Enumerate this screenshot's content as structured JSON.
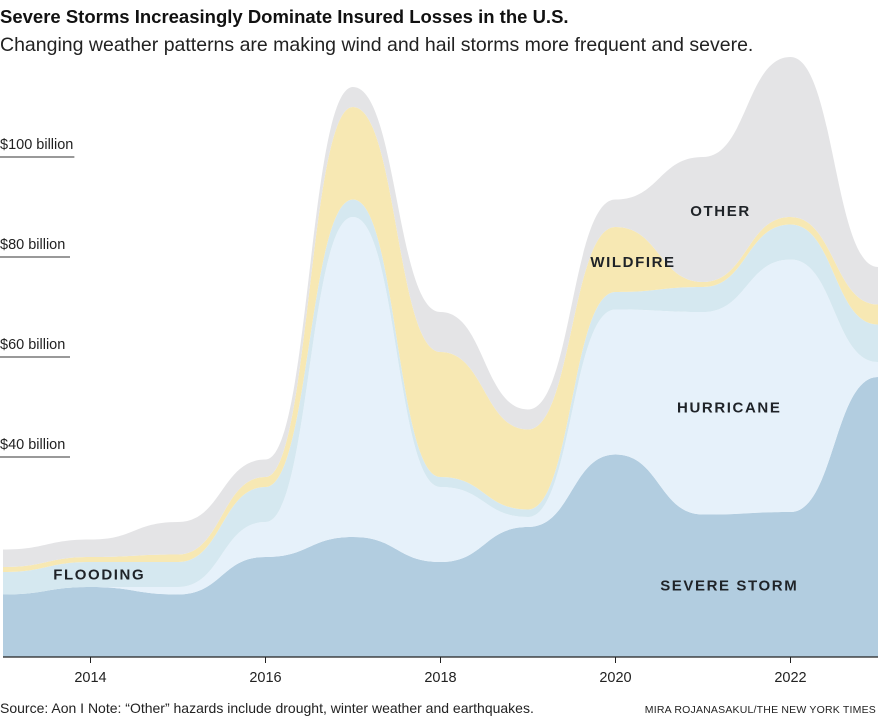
{
  "title": "Severe Storms Increasingly Dominate Insured Losses in the U.S.",
  "subtitle": "Changing weather patterns are making wind and hail storms more frequent and severe.",
  "source": "Source: Aon I Note: “Other” hazards include drought, winter weather and earthquakes.",
  "credit": "MIRA ROJANASAKUL/THE NEW YORK TIMES",
  "chart_data": {
    "type": "area",
    "stacked": true,
    "x": [
      2013,
      2014,
      2015,
      2016,
      2017,
      2018,
      2019,
      2020,
      2021,
      2022,
      2023
    ],
    "xticks": [
      2014,
      2016,
      2018,
      2020,
      2022
    ],
    "xtick_labels": [
      "2014",
      "2016",
      "2018",
      "2020",
      "2022"
    ],
    "xlim": [
      2013,
      2023
    ],
    "ylim": [
      0,
      120
    ],
    "yticks": [
      40,
      60,
      80,
      100
    ],
    "ytick_labels": [
      "$40 billion",
      "$60 billion",
      "$80 billion",
      "$100 billion"
    ],
    "series": [
      {
        "name": "SEVERE STORM",
        "color": "#b2cde0",
        "values": [
          12.5,
          14,
          12.5,
          20,
          24,
          19,
          26,
          40.5,
          28.5,
          29,
          56
        ]
      },
      {
        "name": "HURRICANE",
        "color": "#e6f1fa",
        "values": [
          0,
          0,
          1.5,
          7,
          64,
          15,
          2,
          29,
          40.5,
          50.5,
          3
        ]
      },
      {
        "name": "FLOODING",
        "color": "#d5e8f0",
        "values": [
          4.5,
          5,
          5,
          7,
          3.5,
          2,
          1.5,
          3.5,
          5,
          7,
          7.5
        ]
      },
      {
        "name": "WILDFIRE",
        "color": "#f7e8b3",
        "values": [
          1,
          1,
          1.5,
          2,
          18.5,
          25,
          16,
          13,
          1,
          1.5,
          4
        ]
      },
      {
        "name": "OTHER",
        "color": "#e4e4e6",
        "values": [
          3.5,
          3.5,
          6.5,
          3.5,
          4,
          8,
          4,
          5.5,
          25,
          32,
          7.5
        ]
      }
    ],
    "grid": false
  }
}
